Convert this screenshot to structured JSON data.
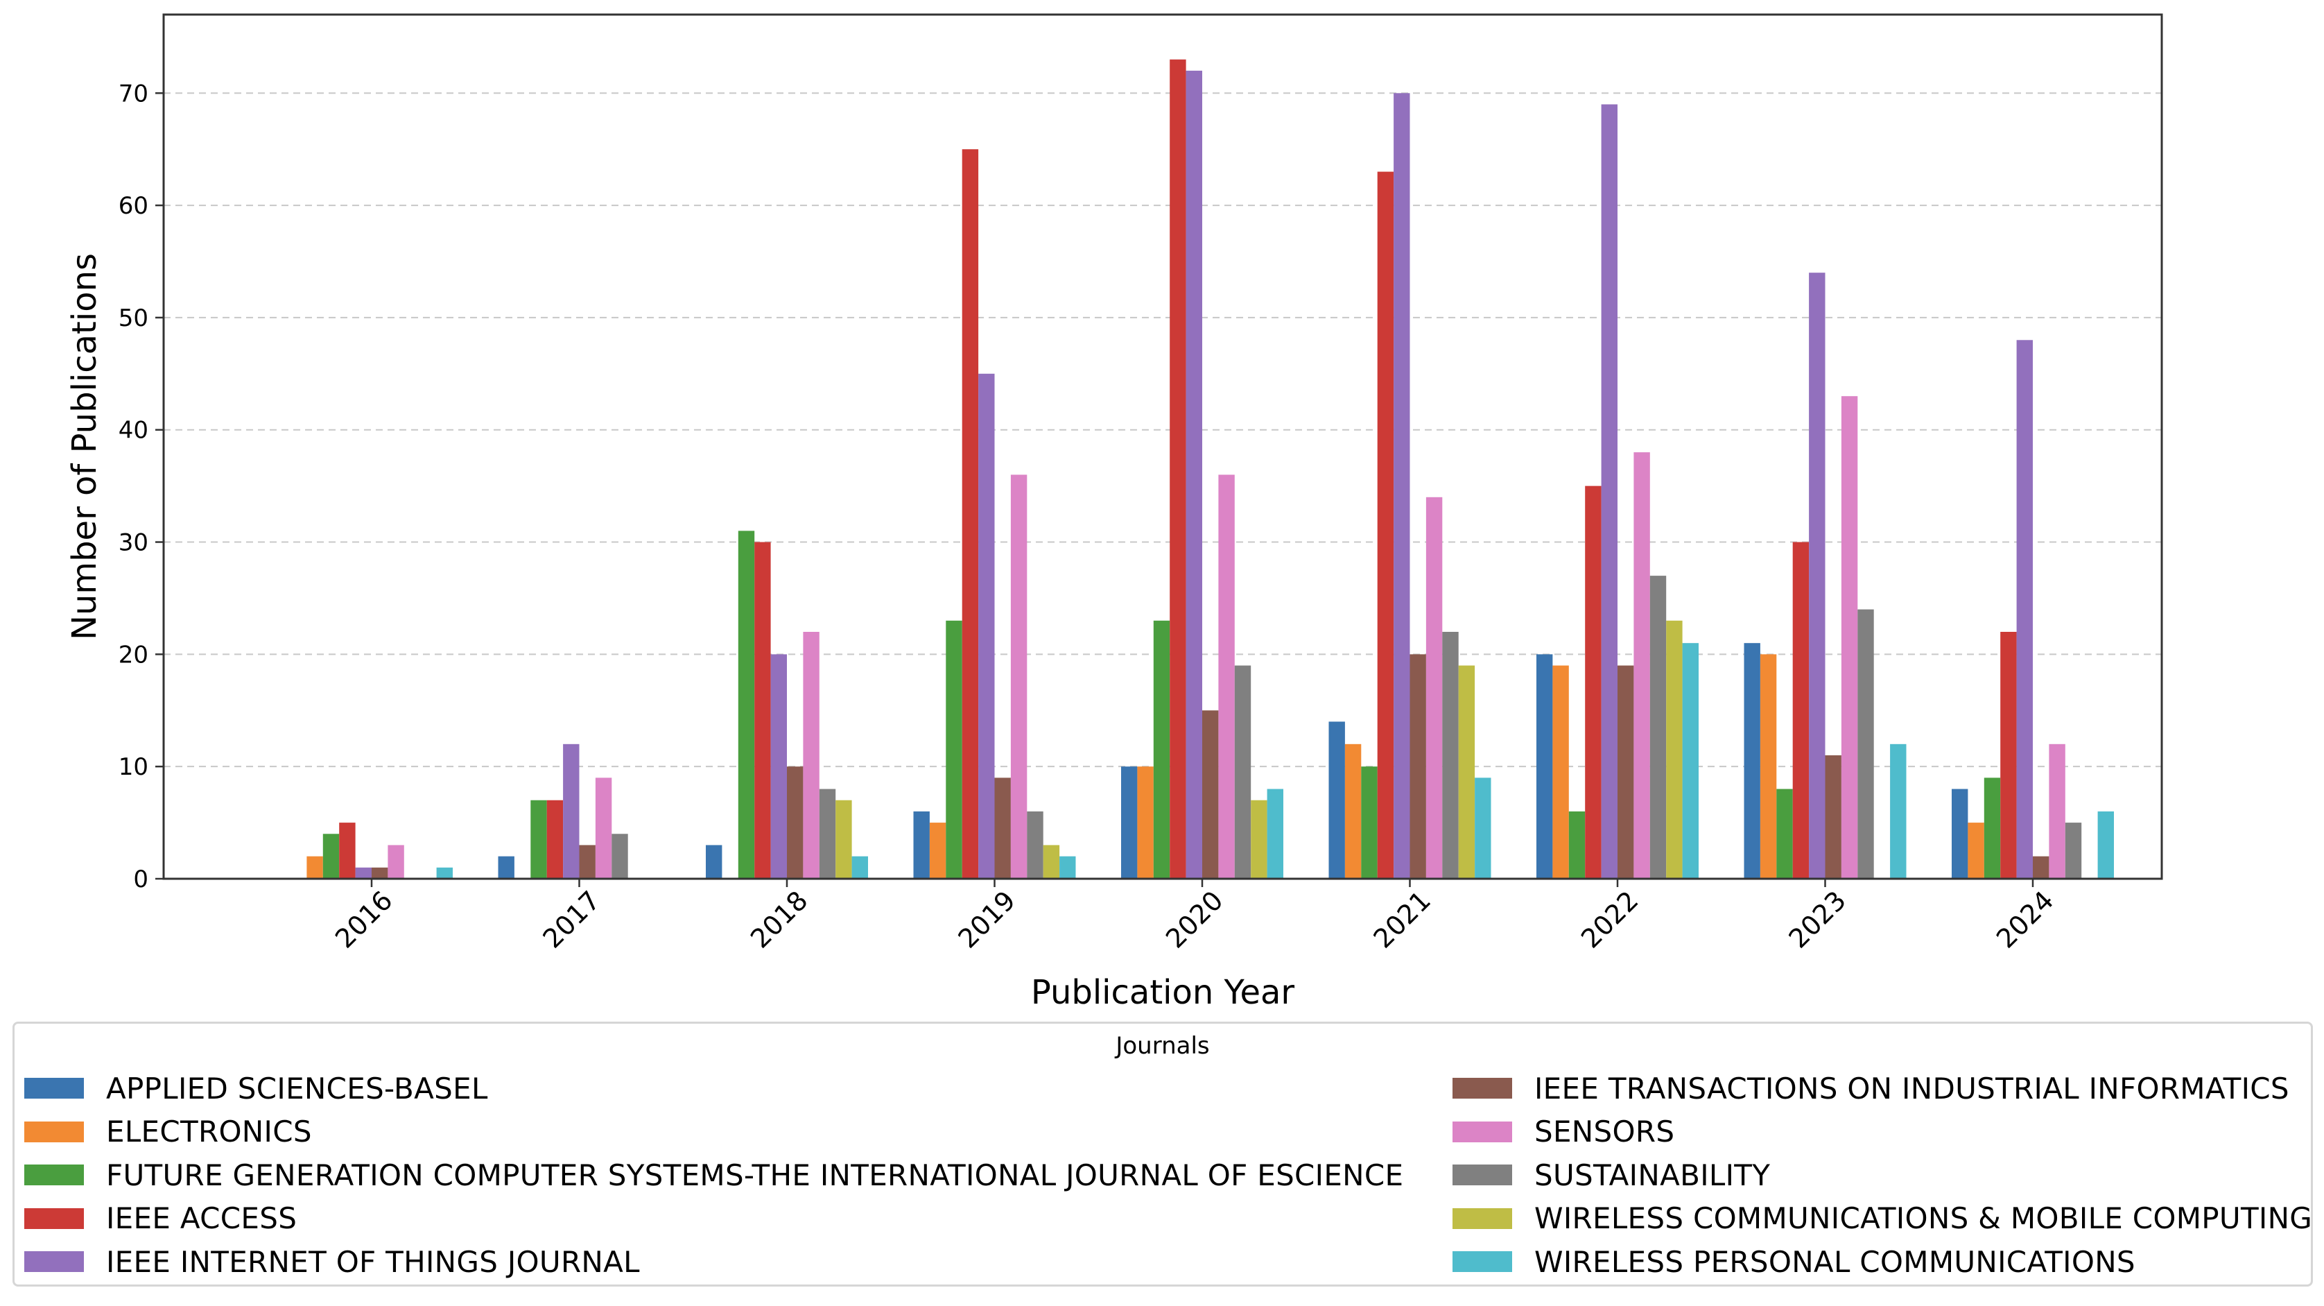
{
  "chart_data": {
    "type": "bar",
    "title": "",
    "xlabel": "Publication Year",
    "ylabel": "Number of Publications",
    "ylim": [
      0,
      77
    ],
    "yticks": [
      0,
      10,
      20,
      30,
      40,
      50,
      60,
      70
    ],
    "grid": "y-dashed",
    "categories": [
      "2016",
      "2017",
      "2018",
      "2019",
      "2020",
      "2021",
      "2022",
      "2023",
      "2024"
    ],
    "legend_title": "Journals",
    "legend_position": "bottom",
    "series": [
      {
        "name": "APPLIED SCIENCES-BASEL",
        "color": "#3a75b0",
        "values": [
          0,
          2,
          3,
          6,
          10,
          14,
          20,
          21,
          8
        ]
      },
      {
        "name": "ELECTRONICS",
        "color": "#f28a33",
        "values": [
          2,
          0,
          0,
          5,
          10,
          12,
          19,
          20,
          5
        ]
      },
      {
        "name": "FUTURE GENERATION COMPUTER SYSTEMS-THE INTERNATIONAL JOURNAL OF ESCIENCE",
        "color": "#4a9e3f",
        "values": [
          4,
          7,
          31,
          23,
          23,
          10,
          6,
          8,
          9
        ]
      },
      {
        "name": "IEEE ACCESS",
        "color": "#cc3a36",
        "values": [
          5,
          7,
          30,
          65,
          73,
          63,
          35,
          30,
          22
        ]
      },
      {
        "name": "IEEE INTERNET OF THINGS JOURNAL",
        "color": "#9270bd",
        "values": [
          1,
          12,
          20,
          45,
          72,
          70,
          69,
          54,
          48
        ]
      },
      {
        "name": "IEEE TRANSACTIONS ON INDUSTRIAL INFORMATICS",
        "color": "#8a5a4e",
        "values": [
          1,
          3,
          10,
          9,
          15,
          20,
          19,
          11,
          2
        ]
      },
      {
        "name": "SENSORS",
        "color": "#dc84c6",
        "values": [
          3,
          9,
          22,
          36,
          36,
          34,
          38,
          43,
          12
        ]
      },
      {
        "name": "SUSTAINABILITY",
        "color": "#808080",
        "values": [
          0,
          4,
          8,
          6,
          19,
          22,
          27,
          24,
          5
        ]
      },
      {
        "name": "WIRELESS COMMUNICATIONS & MOBILE COMPUTING",
        "color": "#bfbd45",
        "values": [
          0,
          0,
          7,
          3,
          7,
          19,
          23,
          0,
          0
        ]
      },
      {
        "name": "WIRELESS PERSONAL COMMUNICATIONS",
        "color": "#4fbccc",
        "values": [
          1,
          0,
          2,
          2,
          8,
          9,
          21,
          12,
          6
        ]
      }
    ]
  }
}
